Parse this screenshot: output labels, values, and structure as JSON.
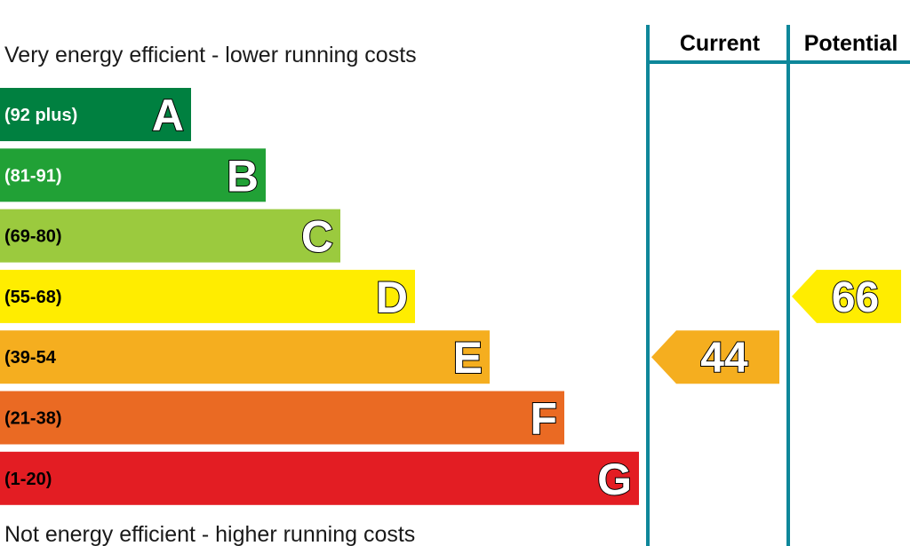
{
  "chart_data": {
    "type": "bar",
    "top_caption": "Very energy efficient - lower running costs",
    "bottom_caption": "Not energy efficient - higher running costs",
    "bands": [
      {
        "letter": "A",
        "range": "(92 plus)",
        "color": "#008040",
        "text_color": "#ffffff"
      },
      {
        "letter": "B",
        "range": "(81-91)",
        "color": "#21a136",
        "text_color": "#ffffff"
      },
      {
        "letter": "C",
        "range": "(69-80)",
        "color": "#9bca3e",
        "text_color": "#000000"
      },
      {
        "letter": "D",
        "range": "(55-68)",
        "color": "#ffed00",
        "text_color": "#000000"
      },
      {
        "letter": "E",
        "range": "(39-54",
        "color": "#f5ae1f",
        "text_color": "#000000"
      },
      {
        "letter": "F",
        "range": "(21-38)",
        "color": "#ea6a23",
        "text_color": "#000000"
      },
      {
        "letter": "G",
        "range": "(1-20)",
        "color": "#e31d23",
        "text_color": "#000000"
      }
    ],
    "columns": [
      {
        "label": "Current",
        "value": 44,
        "band": "E",
        "color": "#f5ae1f"
      },
      {
        "label": "Potential",
        "value": 66,
        "band": "D",
        "color": "#ffed00"
      }
    ],
    "divider_color": "#0e879a"
  }
}
